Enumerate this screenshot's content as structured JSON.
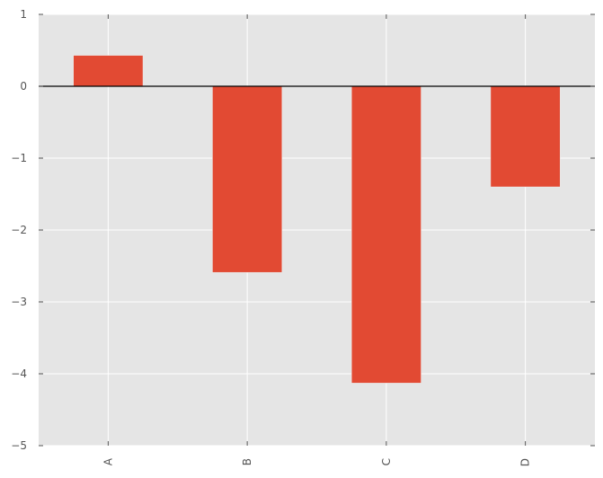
{
  "chart_data": {
    "type": "bar",
    "categories": [
      "A",
      "B",
      "C",
      "D"
    ],
    "values": [
      0.43,
      -2.59,
      -4.13,
      -1.4
    ],
    "title": "",
    "xlabel": "",
    "ylabel": "",
    "ylim": [
      -5,
      1
    ],
    "yticks": [
      1,
      0,
      -1,
      -2,
      -3,
      -4,
      -5
    ],
    "ytick_labels": [
      "1",
      "0",
      "−1",
      "−2",
      "−3",
      "−4",
      "−5"
    ],
    "grid": true,
    "zero_line": true,
    "style": "ggplot",
    "colors": {
      "bar": "#E24A33",
      "background": "#E5E5E5",
      "grid": "#FFFFFF",
      "zero_line": "#000000"
    }
  }
}
